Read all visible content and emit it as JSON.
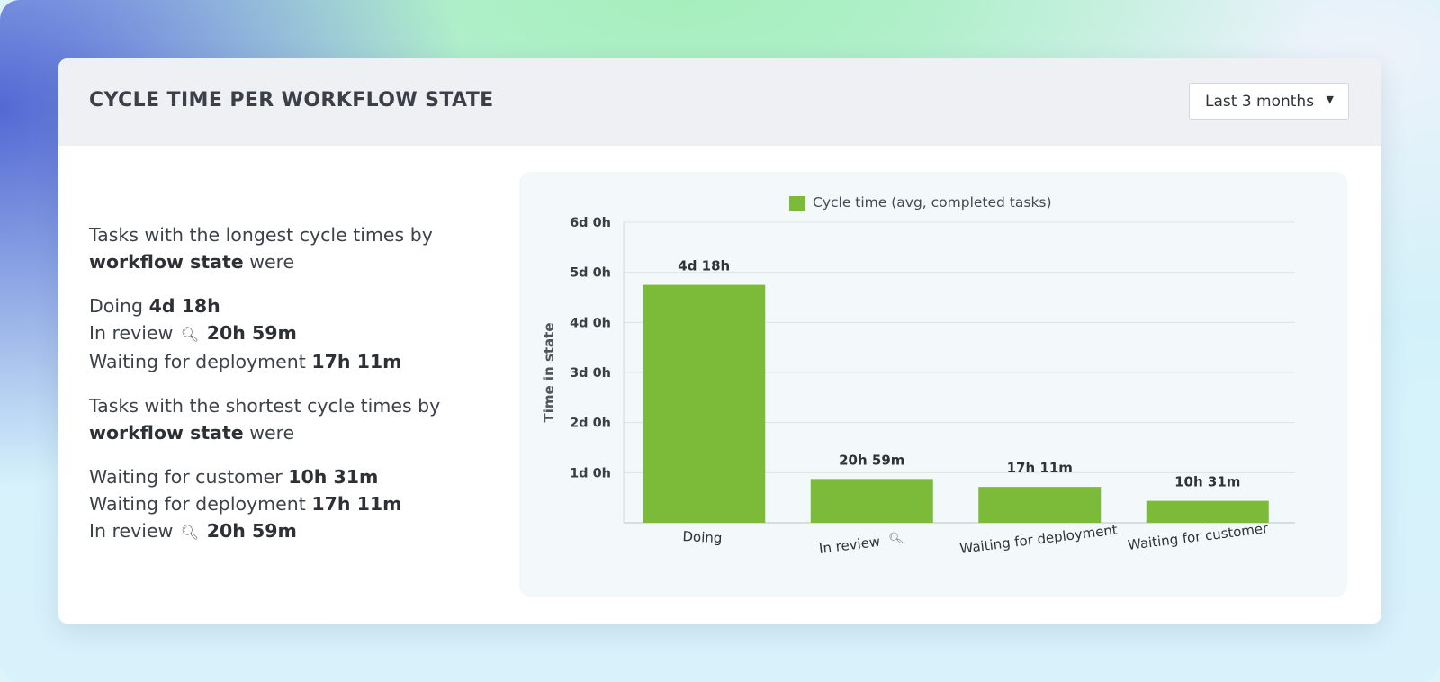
{
  "card": {
    "title": "CYCLE TIME PER WORKFLOW STATE",
    "range_select": {
      "value": "Last 3 months"
    }
  },
  "summary": {
    "longest_intro_a": "Tasks with the longest cycle times by",
    "longest_intro_bold": "workflow state",
    "longest_intro_b": "were",
    "longest": [
      {
        "state": "Doing",
        "value": "4d 18h",
        "icon": ""
      },
      {
        "state": "In review",
        "value": "20h 59m",
        "icon": "magnifier-icon"
      },
      {
        "state": "Waiting for deployment",
        "value": "17h 11m",
        "icon": ""
      }
    ],
    "shortest_intro_a": "Tasks with the shortest cycle times by",
    "shortest_intro_bold": "workflow state",
    "shortest_intro_b": "were",
    "shortest": [
      {
        "state": "Waiting for customer",
        "value": "10h 31m",
        "icon": ""
      },
      {
        "state": "Waiting for deployment",
        "value": "17h 11m",
        "icon": ""
      },
      {
        "state": "In review",
        "value": "20h 59m",
        "icon": "magnifier-icon"
      }
    ]
  },
  "chart_data": {
    "type": "bar",
    "categories": [
      "Doing",
      "In review",
      "Waiting for deployment",
      "Waiting for customer"
    ],
    "category_icons": [
      "",
      "magnifier-icon",
      "",
      ""
    ],
    "series": [
      {
        "name": "Cycle time (avg, completed tasks)",
        "values_hours": [
          114,
          20.98,
          17.18,
          10.52
        ],
        "labels": [
          "4d 18h",
          "20h 59m",
          "17h 11m",
          "10h 31m"
        ],
        "color": "#7cbb3a"
      }
    ],
    "ylabel": "Time in state",
    "xlabel": "",
    "y_ticks": [
      {
        "hours": 24,
        "label": "1d 0h"
      },
      {
        "hours": 48,
        "label": "2d 0h"
      },
      {
        "hours": 72,
        "label": "3d 0h"
      },
      {
        "hours": 96,
        "label": "4d 0h"
      },
      {
        "hours": 120,
        "label": "5d 0h"
      },
      {
        "hours": 144,
        "label": "6d 0h"
      }
    ],
    "ylim_hours": [
      0,
      144
    ],
    "grid": true,
    "legend_position": "top-center"
  }
}
